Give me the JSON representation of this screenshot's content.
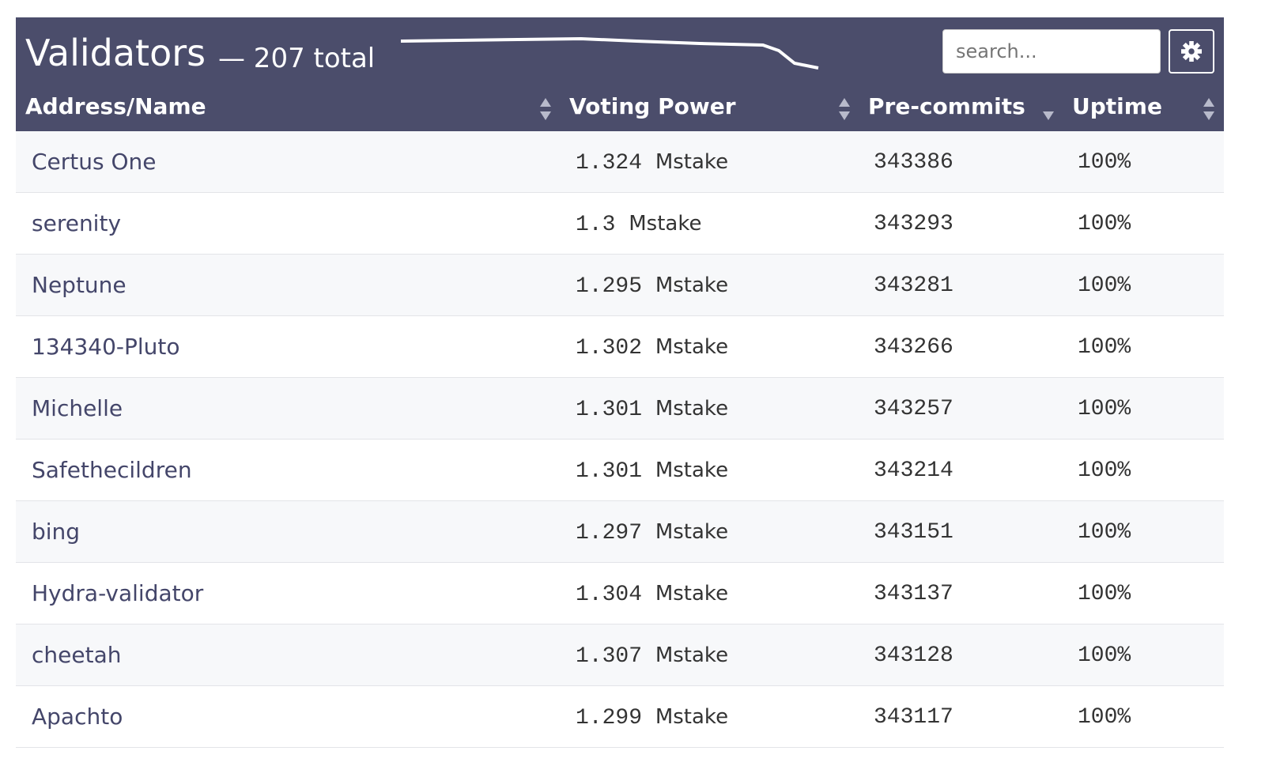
{
  "header": {
    "title": "Validators",
    "subtitle": "— 207 total",
    "search_placeholder": "search..."
  },
  "table": {
    "columns": [
      "Address/Name",
      "Voting Power",
      "Pre-commits",
      "Uptime"
    ],
    "rows": [
      {
        "name": "Certus One",
        "power": "1.324",
        "unit": "Mstake",
        "precommits": "343386",
        "uptime": "100%"
      },
      {
        "name": "serenity",
        "power": "1.3",
        "unit": "Mstake",
        "precommits": "343293",
        "uptime": "100%"
      },
      {
        "name": "Neptune",
        "power": "1.295",
        "unit": "Mstake",
        "precommits": "343281",
        "uptime": "100%"
      },
      {
        "name": "134340-Pluto",
        "power": "1.302",
        "unit": "Mstake",
        "precommits": "343266",
        "uptime": "100%"
      },
      {
        "name": "Michelle",
        "power": "1.301",
        "unit": "Mstake",
        "precommits": "343257",
        "uptime": "100%"
      },
      {
        "name": "Safethecildren",
        "power": "1.301",
        "unit": "Mstake",
        "precommits": "343214",
        "uptime": "100%"
      },
      {
        "name": "bing",
        "power": "1.297",
        "unit": "Mstake",
        "precommits": "343151",
        "uptime": "100%"
      },
      {
        "name": "Hydra-validator",
        "power": "1.304",
        "unit": "Mstake",
        "precommits": "343137",
        "uptime": "100%"
      },
      {
        "name": "cheetah",
        "power": "1.307",
        "unit": "Mstake",
        "precommits": "343128",
        "uptime": "100%"
      },
      {
        "name": "Apachto",
        "power": "1.299",
        "unit": "Mstake",
        "precommits": "343117",
        "uptime": "100%"
      }
    ]
  }
}
